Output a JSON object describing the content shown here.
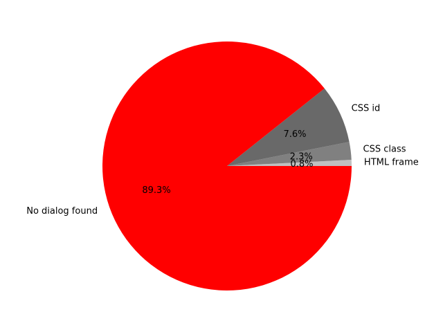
{
  "chart_data": {
    "type": "pie",
    "title": "",
    "slices": [
      {
        "label": "HTML frame",
        "value": 0.8,
        "pct_label": "0.8%",
        "color": "#c0c0c0"
      },
      {
        "label": "CSS class",
        "value": 2.3,
        "pct_label": "2.3%",
        "color": "#808080"
      },
      {
        "label": "CSS id",
        "value": 7.6,
        "pct_label": "7.6%",
        "color": "#696969"
      },
      {
        "label": "No dialog found",
        "value": 89.3,
        "pct_label": "89.3%",
        "color": "#ff0000"
      }
    ]
  }
}
